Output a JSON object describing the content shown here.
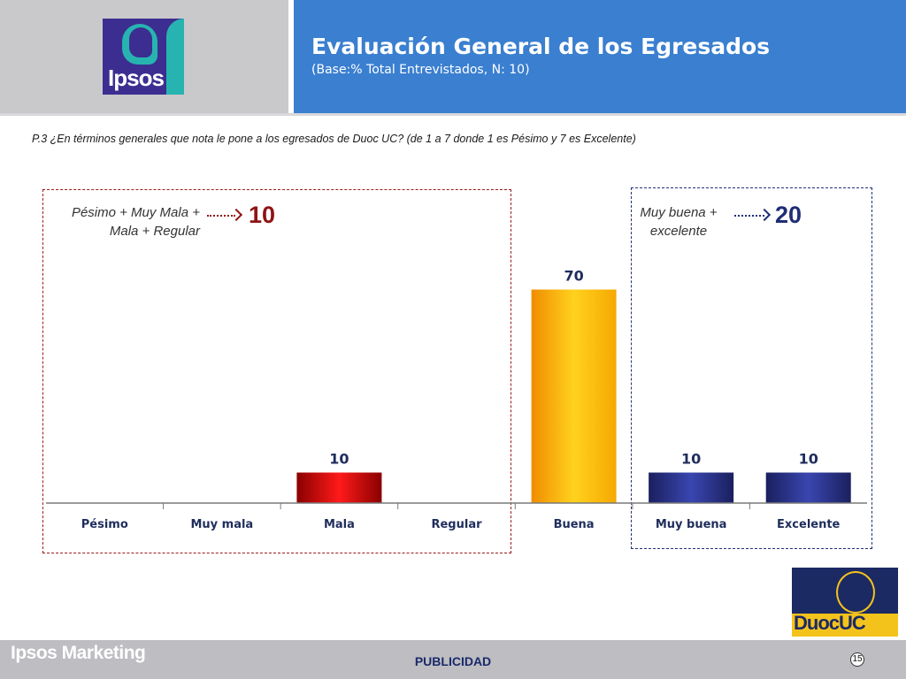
{
  "header": {
    "logo_text": "Ipsos",
    "title": "Evaluación General de los Egresados",
    "subtitle": "(Base:% Total Entrevistados, N: 10)"
  },
  "question": "P.3 ¿En términos generales que nota le pone a los egresados de Duoc UC? (de 1 a 7 donde 1 es Pésimo y 7 es Excelente)",
  "groups": {
    "negative": {
      "label_line1": "Pésimo + Muy Mala +",
      "label_line2": "Mala + Regular",
      "value": "10"
    },
    "positive": {
      "label_line1": "Muy buena +",
      "label_line2": "excelente",
      "value": "20"
    }
  },
  "chart_data": {
    "type": "bar",
    "categories": [
      "Pésimo",
      "Muy mala",
      "Mala",
      "Regular",
      "Buena",
      "Muy buena",
      "Excelente"
    ],
    "values": [
      0,
      0,
      10,
      0,
      70,
      10,
      10
    ],
    "data_labels": [
      "",
      "",
      "10",
      "",
      "70",
      "10",
      "10"
    ],
    "ylim": [
      0,
      100
    ],
    "grid": false,
    "colors": {
      "Mala": "#e01010",
      "Buena": "#f9b700",
      "Muy buena": "#2a3490",
      "Excelente": "#2a3490"
    },
    "label_color": "#1f2d5c"
  },
  "colors": {
    "header_blue": "#3a7fd0",
    "negative_accent": "#8e1414",
    "positive_accent": "#1f2d77"
  },
  "brand_logo_text": "DuocUC",
  "footer": {
    "brand": "Ipsos Marketing",
    "section": "PUBLICIDAD",
    "page": "15"
  }
}
